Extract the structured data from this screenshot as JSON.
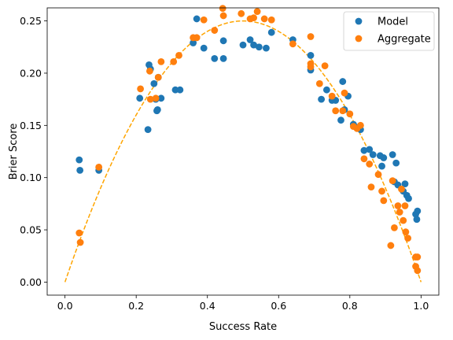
{
  "chart_data": {
    "type": "scatter",
    "xlabel": "Success Rate",
    "ylabel": "Brier Score",
    "xlim": [
      -0.05,
      1.05
    ],
    "ylim": [
      -0.0125,
      0.2625
    ],
    "xticks": [
      0.0,
      0.2,
      0.4,
      0.6,
      0.8,
      1.0
    ],
    "xtick_labels": [
      "0.0",
      "0.2",
      "0.4",
      "0.6",
      "0.8",
      "1.0"
    ],
    "yticks": [
      0.0,
      0.05,
      0.1,
      0.15,
      0.2,
      0.25
    ],
    "ytick_labels": [
      "0.00",
      "0.05",
      "0.10",
      "0.15",
      "0.20",
      "0.25"
    ],
    "grid": false,
    "legend_position": "top-right",
    "series": [
      {
        "name": "Model",
        "color": "#1f77b4",
        "points": [
          [
            0.04,
            0.117
          ],
          [
            0.042,
            0.107
          ],
          [
            0.095,
            0.107
          ],
          [
            0.21,
            0.176
          ],
          [
            0.233,
            0.146
          ],
          [
            0.236,
            0.208
          ],
          [
            0.24,
            0.204
          ],
          [
            0.25,
            0.19
          ],
          [
            0.255,
            0.175
          ],
          [
            0.258,
            0.164
          ],
          [
            0.26,
            0.165
          ],
          [
            0.262,
            0.196
          ],
          [
            0.27,
            0.176
          ],
          [
            0.31,
            0.184
          ],
          [
            0.323,
            0.184
          ],
          [
            0.36,
            0.229
          ],
          [
            0.37,
            0.252
          ],
          [
            0.39,
            0.224
          ],
          [
            0.42,
            0.214
          ],
          [
            0.445,
            0.214
          ],
          [
            0.445,
            0.231
          ],
          [
            0.5,
            0.227
          ],
          [
            0.52,
            0.232
          ],
          [
            0.53,
            0.227
          ],
          [
            0.545,
            0.225
          ],
          [
            0.565,
            0.224
          ],
          [
            0.58,
            0.239
          ],
          [
            0.64,
            0.232
          ],
          [
            0.69,
            0.203
          ],
          [
            0.69,
            0.217
          ],
          [
            0.72,
            0.175
          ],
          [
            0.735,
            0.184
          ],
          [
            0.75,
            0.174
          ],
          [
            0.76,
            0.174
          ],
          [
            0.775,
            0.155
          ],
          [
            0.78,
            0.192
          ],
          [
            0.785,
            0.165
          ],
          [
            0.795,
            0.178
          ],
          [
            0.81,
            0.151
          ],
          [
            0.82,
            0.148
          ],
          [
            0.83,
            0.146
          ],
          [
            0.84,
            0.126
          ],
          [
            0.855,
            0.127
          ],
          [
            0.865,
            0.122
          ],
          [
            0.885,
            0.121
          ],
          [
            0.89,
            0.111
          ],
          [
            0.895,
            0.119
          ],
          [
            0.92,
            0.122
          ],
          [
            0.925,
            0.096
          ],
          [
            0.93,
            0.114
          ],
          [
            0.935,
            0.093
          ],
          [
            0.95,
            0.087
          ],
          [
            0.955,
            0.094
          ],
          [
            0.96,
            0.083
          ],
          [
            0.965,
            0.08
          ],
          [
            0.985,
            0.065
          ],
          [
            0.988,
            0.06
          ],
          [
            0.99,
            0.068
          ]
        ]
      },
      {
        "name": "Aggregate",
        "color": "#ff7f0e",
        "points": [
          [
            0.04,
            0.047
          ],
          [
            0.043,
            0.038
          ],
          [
            0.095,
            0.11
          ],
          [
            0.212,
            0.185
          ],
          [
            0.238,
            0.202
          ],
          [
            0.24,
            0.175
          ],
          [
            0.255,
            0.176
          ],
          [
            0.262,
            0.196
          ],
          [
            0.27,
            0.211
          ],
          [
            0.305,
            0.211
          ],
          [
            0.32,
            0.217
          ],
          [
            0.36,
            0.234
          ],
          [
            0.37,
            0.234
          ],
          [
            0.39,
            0.251
          ],
          [
            0.42,
            0.241
          ],
          [
            0.443,
            0.262
          ],
          [
            0.445,
            0.255
          ],
          [
            0.495,
            0.257
          ],
          [
            0.52,
            0.252
          ],
          [
            0.53,
            0.253
          ],
          [
            0.54,
            0.259
          ],
          [
            0.56,
            0.252
          ],
          [
            0.58,
            0.251
          ],
          [
            0.64,
            0.228
          ],
          [
            0.69,
            0.235
          ],
          [
            0.69,
            0.206
          ],
          [
            0.69,
            0.209
          ],
          [
            0.715,
            0.19
          ],
          [
            0.73,
            0.207
          ],
          [
            0.75,
            0.178
          ],
          [
            0.76,
            0.164
          ],
          [
            0.78,
            0.164
          ],
          [
            0.785,
            0.181
          ],
          [
            0.8,
            0.161
          ],
          [
            0.81,
            0.149
          ],
          [
            0.82,
            0.147
          ],
          [
            0.83,
            0.15
          ],
          [
            0.84,
            0.118
          ],
          [
            0.855,
            0.113
          ],
          [
            0.86,
            0.091
          ],
          [
            0.88,
            0.103
          ],
          [
            0.89,
            0.087
          ],
          [
            0.895,
            0.078
          ],
          [
            0.915,
            0.035
          ],
          [
            0.92,
            0.097
          ],
          [
            0.925,
            0.052
          ],
          [
            0.935,
            0.073
          ],
          [
            0.94,
            0.067
          ],
          [
            0.945,
            0.089
          ],
          [
            0.95,
            0.059
          ],
          [
            0.955,
            0.073
          ],
          [
            0.957,
            0.048
          ],
          [
            0.963,
            0.042
          ],
          [
            0.985,
            0.024
          ],
          [
            0.985,
            0.015
          ],
          [
            0.99,
            0.024
          ],
          [
            0.99,
            0.011
          ]
        ]
      }
    ],
    "reference_curve": {
      "label": "",
      "formula": "x*(1-x)",
      "color": "#ffa500",
      "style": "dashed"
    }
  }
}
